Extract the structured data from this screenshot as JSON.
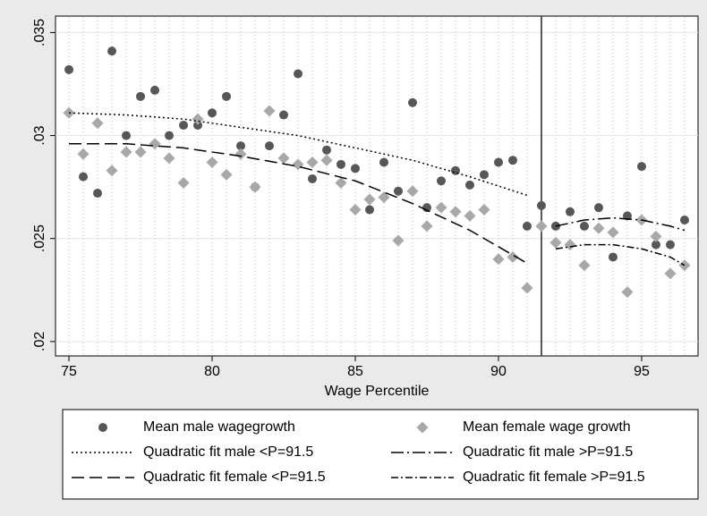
{
  "chart_data": {
    "type": "scatter",
    "xlabel": "Wage Percentile",
    "xlim": [
      74.53,
      96.97
    ],
    "ylim": [
      0.0193,
      0.0358
    ],
    "xticks": [
      75,
      80,
      85,
      90,
      95
    ],
    "yticks": [
      {
        "value": 0.02,
        "label": ".02"
      },
      {
        "value": 0.025,
        "label": ".025"
      },
      {
        "value": 0.03,
        "label": ".03"
      },
      {
        "value": 0.035,
        "label": ".035"
      }
    ],
    "grid": true,
    "xline": 91.5,
    "legend": "bottom",
    "series": [
      {
        "name": "Mean male wagegrowth",
        "kind": "circle",
        "color": "#575757",
        "x": [
          75,
          75.5,
          76,
          76.5,
          77,
          77.5,
          78,
          78.5,
          79,
          79.5,
          80,
          80.5,
          81,
          81.5,
          82,
          82.5,
          83,
          83.5,
          84,
          84.5,
          85,
          85.5,
          86,
          86.5,
          87,
          87.5,
          88,
          88.5,
          89,
          89.5,
          90,
          90.5,
          91,
          91.5,
          92,
          92.5,
          93,
          93.5,
          94,
          94.5,
          95,
          95.5,
          96,
          96.5
        ],
        "values": [
          0.0332,
          0.028,
          0.0272,
          0.0341,
          0.03,
          0.0319,
          0.0322,
          0.03,
          0.0305,
          0.0305,
          0.0311,
          0.0319,
          0.0295,
          0.0275,
          0.0295,
          0.031,
          0.033,
          0.0279,
          0.0293,
          0.0286,
          0.0284,
          0.0264,
          0.0287,
          0.0273,
          0.0316,
          0.0265,
          0.0278,
          0.0283,
          0.0276,
          0.0281,
          0.0287,
          0.0288,
          0.0256,
          0.0266,
          0.0256,
          0.0263,
          0.0256,
          0.0265,
          0.0241,
          0.0261,
          0.0285,
          0.0247,
          0.0247,
          0.0259
        ]
      },
      {
        "name": "Mean female wage growth",
        "kind": "diamond",
        "color": "#a8a8a8",
        "x": [
          75,
          75.5,
          76,
          76.5,
          77,
          77.5,
          78,
          78.5,
          79,
          79.5,
          80,
          80.5,
          81,
          81.5,
          82,
          82.5,
          83,
          83.5,
          84,
          84.5,
          85,
          85.5,
          86,
          86.5,
          87,
          87.5,
          88,
          88.5,
          89,
          89.5,
          90,
          90.5,
          91,
          91.5,
          92,
          92.5,
          93,
          93.5,
          94,
          94.5,
          95,
          95.5,
          96,
          96.5
        ],
        "values": [
          0.0311,
          0.0291,
          0.0306,
          0.0283,
          0.0292,
          0.0292,
          0.0296,
          0.0289,
          0.0277,
          0.0308,
          0.0287,
          0.0281,
          0.0291,
          0.0275,
          0.0312,
          0.0289,
          0.0286,
          0.0287,
          0.0288,
          0.0277,
          0.0264,
          0.0269,
          0.027,
          0.0249,
          0.0273,
          0.0256,
          0.0265,
          0.0263,
          0.0261,
          0.0264,
          0.024,
          0.0241,
          0.0226,
          0.0256,
          0.0248,
          0.0247,
          0.0237,
          0.0255,
          0.0253,
          0.0224,
          0.0259,
          0.0251,
          0.0233,
          0.0237
        ]
      },
      {
        "name": "Quadratic fit male <P=91.5",
        "kind": "line",
        "dash": "2,3",
        "color": "#000000",
        "x": [
          75,
          77,
          79,
          81,
          83,
          85,
          87,
          89,
          91
        ],
        "values": [
          0.0311,
          0.031,
          0.0308,
          0.0304,
          0.03,
          0.0294,
          0.0288,
          0.028,
          0.0271
        ]
      },
      {
        "name": "Quadratic fit male >P=91.5",
        "kind": "line",
        "dash": "14,4,2,4",
        "color": "#000000",
        "x": [
          92,
          93,
          94,
          95,
          96,
          96.5
        ],
        "values": [
          0.0256,
          0.0259,
          0.026,
          0.0259,
          0.0256,
          0.0254
        ]
      },
      {
        "name": "Quadratic fit female <P=91.5",
        "kind": "line",
        "dash": "14,6",
        "color": "#000000",
        "x": [
          75,
          77,
          79,
          81,
          83,
          85,
          87,
          89,
          91
        ],
        "values": [
          0.0296,
          0.0296,
          0.0294,
          0.029,
          0.0285,
          0.0278,
          0.0267,
          0.0254,
          0.0238
        ]
      },
      {
        "name": "Quadratic fit female >P=91.5",
        "kind": "line",
        "dash": "8,3,2,3",
        "color": "#000000",
        "x": [
          92,
          93,
          94,
          95,
          96,
          96.5
        ],
        "values": [
          0.0245,
          0.0247,
          0.0247,
          0.0245,
          0.0241,
          0.0237
        ]
      }
    ]
  }
}
